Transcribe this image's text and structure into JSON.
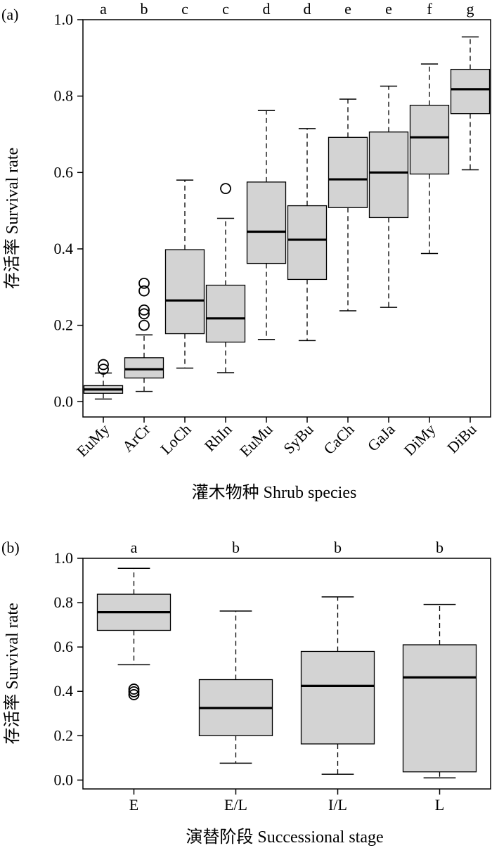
{
  "chart_data": [
    {
      "type": "boxplot",
      "panel_label": "(a)",
      "ylabel": "存活率 Survival rate",
      "xlabel": "灌木物种 Shrub species",
      "ylim": [
        -0.04,
        1.0
      ],
      "yticks": [
        0.0,
        0.2,
        0.4,
        0.6,
        0.8,
        1.0
      ],
      "ytick_labels": [
        "0.0",
        "0.2",
        "0.4",
        "0.6",
        "0.8",
        "1.0"
      ],
      "x_tick_rotation": 45,
      "grid": false,
      "box_color": "#d3d3d3",
      "categories": [
        "EuMy",
        "ArCr",
        "LoCh",
        "RhIn",
        "EuMu",
        "SyBu",
        "CaCh",
        "GaJa",
        "DiMy",
        "DiBu"
      ],
      "group_letters": [
        "a",
        "b",
        "c",
        "c",
        "d",
        "d",
        "e",
        "e",
        "f",
        "g"
      ],
      "boxes": [
        {
          "whisker_low": 0.007,
          "q1": 0.022,
          "median": 0.032,
          "q3": 0.042,
          "whisker_high": 0.075,
          "outliers": [
            0.085,
            0.097
          ]
        },
        {
          "whisker_low": 0.027,
          "q1": 0.062,
          "median": 0.085,
          "q3": 0.115,
          "whisker_high": 0.175,
          "outliers": [
            0.2,
            0.23,
            0.24,
            0.29,
            0.31
          ]
        },
        {
          "whisker_low": 0.088,
          "q1": 0.178,
          "median": 0.265,
          "q3": 0.398,
          "whisker_high": 0.58,
          "outliers": []
        },
        {
          "whisker_low": 0.076,
          "q1": 0.156,
          "median": 0.218,
          "q3": 0.305,
          "whisker_high": 0.48,
          "outliers": [
            0.558
          ]
        },
        {
          "whisker_low": 0.163,
          "q1": 0.362,
          "median": 0.445,
          "q3": 0.575,
          "whisker_high": 0.762,
          "outliers": []
        },
        {
          "whisker_low": 0.16,
          "q1": 0.32,
          "median": 0.424,
          "q3": 0.513,
          "whisker_high": 0.715,
          "outliers": []
        },
        {
          "whisker_low": 0.238,
          "q1": 0.508,
          "median": 0.582,
          "q3": 0.692,
          "whisker_high": 0.792,
          "outliers": []
        },
        {
          "whisker_low": 0.247,
          "q1": 0.482,
          "median": 0.6,
          "q3": 0.706,
          "whisker_high": 0.826,
          "outliers": []
        },
        {
          "whisker_low": 0.388,
          "q1": 0.596,
          "median": 0.692,
          "q3": 0.776,
          "whisker_high": 0.884,
          "outliers": []
        },
        {
          "whisker_low": 0.607,
          "q1": 0.754,
          "median": 0.818,
          "q3": 0.87,
          "whisker_high": 0.955,
          "outliers": []
        }
      ]
    },
    {
      "type": "boxplot",
      "panel_label": "(b)",
      "ylabel": "存活率 Survival rate",
      "xlabel": "演替阶段 Successional stage",
      "ylim": [
        -0.04,
        1.0
      ],
      "yticks": [
        0.0,
        0.2,
        0.4,
        0.6,
        0.8,
        1.0
      ],
      "ytick_labels": [
        "0.0",
        "0.2",
        "0.4",
        "0.6",
        "0.8",
        "1.0"
      ],
      "x_tick_rotation": 0,
      "grid": false,
      "box_color": "#d3d3d3",
      "categories": [
        "E",
        "E/L",
        "I/L",
        "L"
      ],
      "group_letters": [
        "a",
        "b",
        "b",
        "b"
      ],
      "boxes": [
        {
          "whisker_low": 0.52,
          "q1": 0.675,
          "median": 0.757,
          "q3": 0.838,
          "whisker_high": 0.955,
          "outliers": [
            0.385,
            0.398,
            0.41
          ]
        },
        {
          "whisker_low": 0.076,
          "q1": 0.2,
          "median": 0.325,
          "q3": 0.453,
          "whisker_high": 0.762,
          "outliers": []
        },
        {
          "whisker_low": 0.026,
          "q1": 0.163,
          "median": 0.425,
          "q3": 0.58,
          "whisker_high": 0.826,
          "outliers": []
        },
        {
          "whisker_low": 0.01,
          "q1": 0.037,
          "median": 0.463,
          "q3": 0.61,
          "whisker_high": 0.792,
          "outliers": []
        }
      ]
    }
  ]
}
